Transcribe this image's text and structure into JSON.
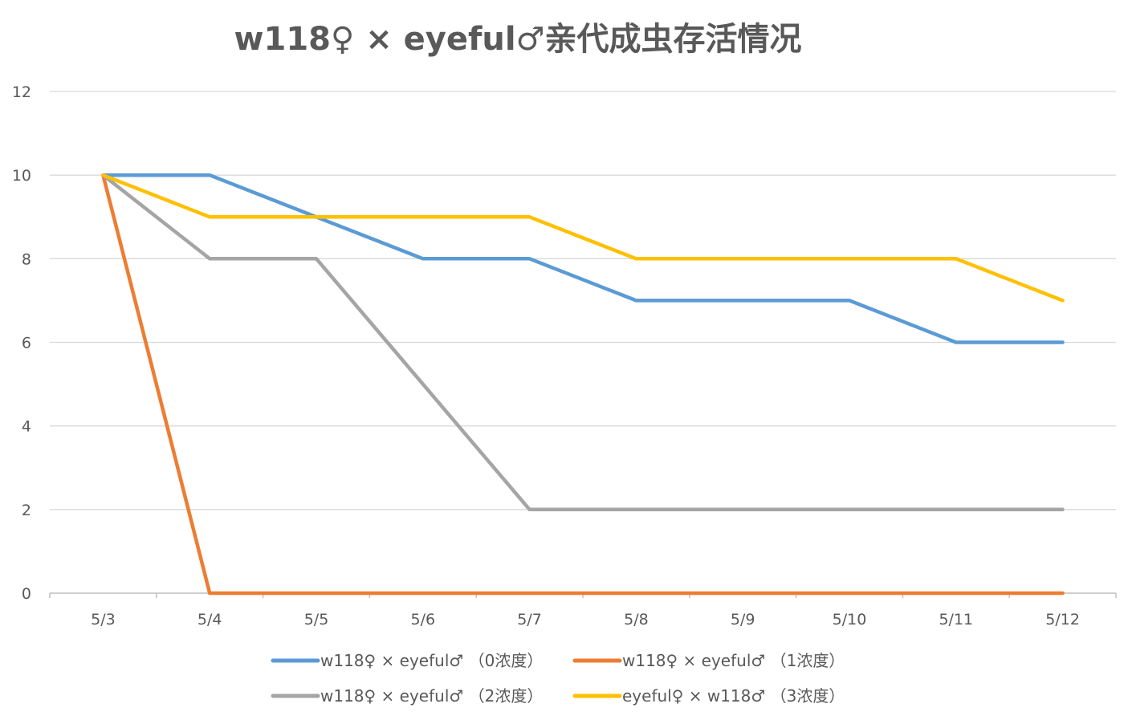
{
  "chart_data": {
    "type": "line",
    "title": "w118♀ × eyeful♂亲代成虫存活情况",
    "xlabel": "",
    "ylabel": "",
    "categories": [
      "5/3",
      "5/4",
      "5/5",
      "5/6",
      "5/7",
      "5/8",
      "5/9",
      "5/10",
      "5/11",
      "5/12"
    ],
    "ylim": [
      0,
      12
    ],
    "yticks": [
      0,
      2,
      4,
      6,
      8,
      10,
      12
    ],
    "grid": true,
    "legend_position": "bottom",
    "series": [
      {
        "name": "w118♀ × eyeful♂ （0浓度）",
        "color": "#5B9BD5",
        "values": [
          10,
          10,
          9,
          8,
          8,
          7,
          7,
          7,
          6,
          6
        ]
      },
      {
        "name": "w118♀ × eyeful♂ （1浓度）",
        "color": "#ED7D31",
        "values": [
          10,
          0,
          0,
          0,
          0,
          0,
          0,
          0,
          0,
          0
        ]
      },
      {
        "name": "w118♀ × eyeful♂ （2浓度）",
        "color": "#A5A5A5",
        "values": [
          10,
          8,
          8,
          5,
          2,
          2,
          2,
          2,
          2,
          2
        ]
      },
      {
        "name": "eyeful♀ × w118♂ （3浓度）",
        "color": "#FFC000",
        "values": [
          10,
          9,
          9,
          9,
          9,
          8,
          8,
          8,
          8,
          7
        ]
      }
    ]
  }
}
